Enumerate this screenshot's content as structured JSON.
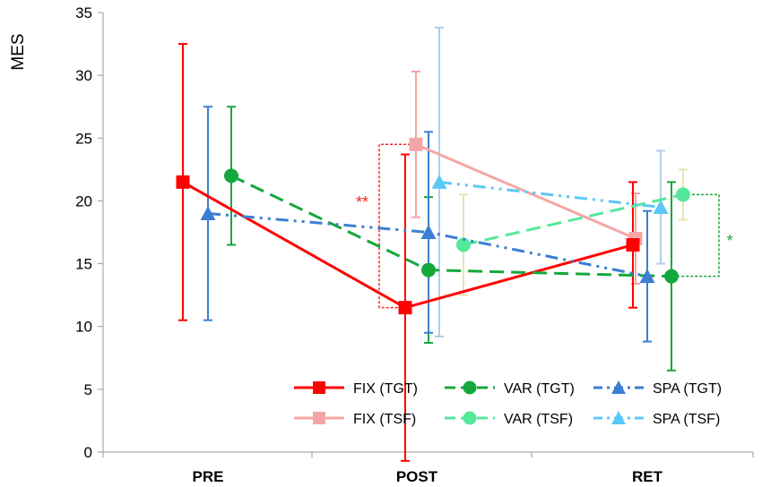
{
  "chart_data": {
    "type": "line",
    "ylabel": "MES",
    "ylim": [
      0,
      35
    ],
    "yticks": [
      0,
      5,
      10,
      15,
      20,
      25,
      30,
      35
    ],
    "categories": [
      "PRE",
      "POST",
      "RET"
    ],
    "grid": false,
    "legend_position": "bottom-right",
    "series": [
      {
        "name": "FIX (TGT)",
        "color": "#ff0000",
        "marker": "square",
        "dash": "solid",
        "points": [
          {
            "cat": 0,
            "y": 21.5,
            "err": 11
          },
          {
            "cat": 1,
            "y": 11.5,
            "err": 12.2
          },
          {
            "cat": 2,
            "y": 16.5,
            "err": 5
          }
        ]
      },
      {
        "name": "FIX (TSF)",
        "color": "#f4a6a6",
        "marker": "square",
        "dash": "solid",
        "points": [
          {
            "cat": 1,
            "y": 24.5,
            "err": 5.8
          },
          {
            "cat": 2,
            "y": 17,
            "err": 3.6
          }
        ]
      },
      {
        "name": "VAR (TGT)",
        "color": "#14a83c",
        "marker": "circle",
        "dash": "dash",
        "points": [
          {
            "cat": 0,
            "y": 22,
            "err": 5.5
          },
          {
            "cat": 1,
            "y": 14.5,
            "err": 5.8
          },
          {
            "cat": 2,
            "y": 14,
            "err": 7.5
          }
        ]
      },
      {
        "name": "VAR (TSF)",
        "color": "#55e89a",
        "marker": "circle",
        "dash": "dash",
        "points": [
          {
            "cat": 1,
            "y": 16.5,
            "err": 4
          },
          {
            "cat": 2,
            "y": 20.5,
            "err": 2
          }
        ]
      },
      {
        "name": "SPA (TGT)",
        "color": "#3b7fd2",
        "marker": "triangle",
        "dash": "dashdot",
        "points": [
          {
            "cat": 0,
            "y": 19,
            "err": 8.5
          },
          {
            "cat": 1,
            "y": 17.5,
            "err": 8
          },
          {
            "cat": 2,
            "y": 14,
            "err": 5.2
          }
        ]
      },
      {
        "name": "SPA (TSF)",
        "color": "#5cc8f5",
        "marker": "triangle",
        "dash": "dashdot",
        "points": [
          {
            "cat": 1,
            "y": 21.5,
            "err": 12.3
          },
          {
            "cat": 2,
            "y": 19.5,
            "err": 4.5
          }
        ]
      }
    ],
    "error_bar_colors": {
      "FIX (TSF)": "#f4a6a6",
      "VAR (TSF)": "#e8e3b4",
      "SPA (TSF)": "#b4cde6"
    },
    "annotations": [
      {
        "text": "**",
        "color": "#ff2020",
        "between": "FIX (TGT) vs FIX (TSF)",
        "at": "POST"
      },
      {
        "text": "*",
        "color": "#14a83c",
        "between": "VAR (TGT) vs VAR (TSF)",
        "at": "RET"
      }
    ]
  }
}
